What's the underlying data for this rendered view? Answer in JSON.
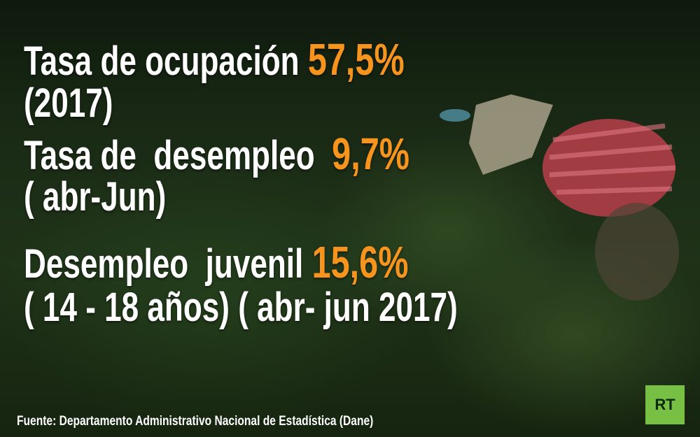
{
  "stats": [
    {
      "label": "Tasa de ocupación",
      "value": "57,5%",
      "period": "(2017)"
    },
    {
      "label": "Tasa de  desempleo",
      "value": "9,7%",
      "period": "( abr-Jun)"
    },
    {
      "label": "Desempleo  juvenil",
      "value": "15,6%",
      "period": "( 14 - 18 años) ( abr- jun 2017)"
    }
  ],
  "source": "Fuente: Departamento Administrativo Nacional de Estadística (Dane)",
  "logo": "RT"
}
